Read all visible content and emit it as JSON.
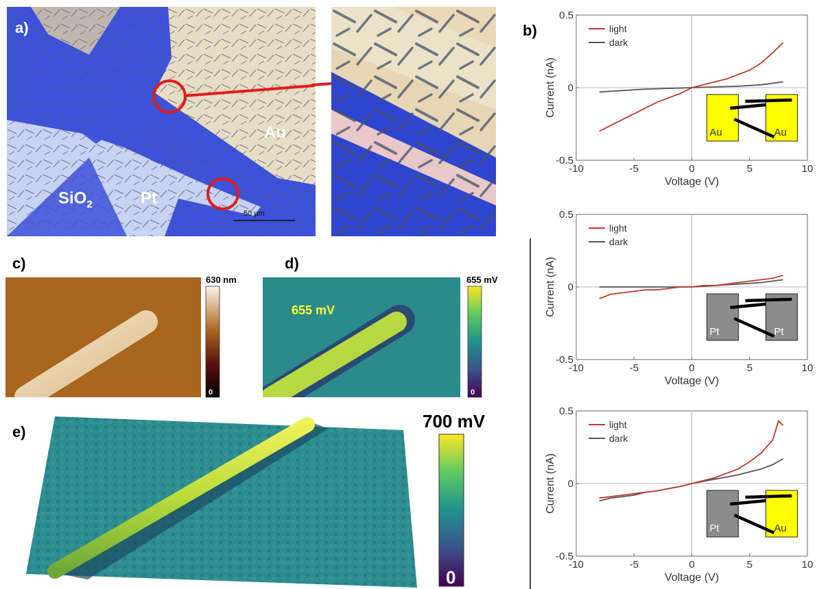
{
  "panels": {
    "a": {
      "label": "a)",
      "sio2_main": "SiO",
      "sio2_sub": "2",
      "pt": "Pt",
      "au": "Au",
      "scale_bar": "50 µm"
    },
    "b": {
      "label": "b)"
    },
    "c": {
      "label": "c)",
      "colorbar_max": "630 nm",
      "colorbar_min": "0"
    },
    "d": {
      "label": "d)",
      "colorbar_max": "655 mV",
      "colorbar_min": "0",
      "annotation": "655 mV"
    },
    "e": {
      "label": "e)",
      "colorbar_max": "700 mV",
      "colorbar_min": "0"
    }
  },
  "colors": {
    "light": "#c0392b",
    "dark": "#555555",
    "au_pad": "#ffff00",
    "pt_pad": "#8c8c8c",
    "microscope_blue": "#3a4fd6"
  },
  "chart_data": [
    {
      "type": "line",
      "contacts": [
        "Au",
        "Au"
      ],
      "xlabel": "Voltage (V)",
      "ylabel": "Current (nA)",
      "xlim": [
        -10,
        10
      ],
      "ylim": [
        -0.5,
        0.5
      ],
      "xticks": [
        "-10",
        "-5",
        "0",
        "5",
        "10"
      ],
      "yticks": [
        "0.5",
        "0",
        "-0.5"
      ],
      "legend_position": "top-left",
      "series": [
        {
          "name": "light",
          "color": "#c0392b",
          "x": [
            -8,
            -7,
            -6,
            -5,
            -4,
            -3,
            -2,
            -1,
            0,
            1,
            2,
            3,
            4,
            5,
            6,
            7,
            7.9
          ],
          "y": [
            -0.3,
            -0.26,
            -0.22,
            -0.18,
            -0.14,
            -0.1,
            -0.07,
            -0.04,
            0,
            0.02,
            0.04,
            0.06,
            0.09,
            0.12,
            0.17,
            0.24,
            0.31
          ]
        },
        {
          "name": "dark",
          "color": "#555555",
          "x": [
            -8,
            -6,
            -4,
            -2,
            0,
            2,
            4,
            6,
            7.9
          ],
          "y": [
            -0.03,
            -0.02,
            -0.01,
            -0.005,
            0,
            0.005,
            0.01,
            0.02,
            0.04
          ]
        }
      ]
    },
    {
      "type": "line",
      "contacts": [
        "Pt",
        "Pt"
      ],
      "xlabel": "Voltage (V)",
      "ylabel": "Current (nA)",
      "xlim": [
        -10,
        10
      ],
      "ylim": [
        -0.5,
        0.5
      ],
      "xticks": [
        "-10",
        "-5",
        "0",
        "5",
        "10"
      ],
      "yticks": [
        "0.5",
        "0",
        "-0.5"
      ],
      "legend_position": "top-left",
      "series": [
        {
          "name": "light",
          "color": "#c0392b",
          "x": [
            -8,
            -7,
            -6,
            -5,
            -4,
            -3,
            -2,
            -1,
            0,
            1,
            2,
            3,
            4,
            5,
            6,
            7,
            7.9
          ],
          "y": [
            -0.08,
            -0.05,
            -0.04,
            -0.03,
            -0.02,
            -0.02,
            -0.01,
            0,
            0,
            0.01,
            0.01,
            0.02,
            0.03,
            0.04,
            0.05,
            0.06,
            0.08
          ]
        },
        {
          "name": "dark",
          "color": "#555555",
          "x": [
            -8,
            -6,
            -4,
            -2,
            0,
            2,
            4,
            6,
            7.9
          ],
          "y": [
            0,
            0,
            0,
            0,
            0,
            0.01,
            0.02,
            0.03,
            0.05
          ]
        }
      ]
    },
    {
      "type": "line",
      "contacts": [
        "Pt",
        "Au"
      ],
      "xlabel": "Voltage (V)",
      "ylabel": "Current (nA)",
      "xlim": [
        -10,
        10
      ],
      "ylim": [
        -0.5,
        0.5
      ],
      "xticks": [
        "-10",
        "-5",
        "0",
        "5",
        "10"
      ],
      "yticks": [
        "0.5",
        "0",
        "-0.5"
      ],
      "legend_position": "top-left",
      "series": [
        {
          "name": "light",
          "color": "#c0392b",
          "x": [
            -8,
            -7,
            -6,
            -5,
            -4,
            -3,
            -2,
            -1,
            0,
            1,
            2,
            3,
            4,
            5,
            6,
            7,
            7.5,
            7.9
          ],
          "y": [
            -0.1,
            -0.09,
            -0.08,
            -0.07,
            -0.06,
            -0.05,
            -0.035,
            -0.02,
            0,
            0.02,
            0.04,
            0.07,
            0.1,
            0.15,
            0.21,
            0.3,
            0.43,
            0.4
          ]
        },
        {
          "name": "dark",
          "color": "#555555",
          "x": [
            -8,
            -7,
            -6,
            -5,
            -4,
            -3,
            -2,
            -1,
            0,
            1,
            2,
            3,
            4,
            5,
            6,
            7,
            7.9
          ],
          "y": [
            -0.12,
            -0.1,
            -0.09,
            -0.08,
            -0.06,
            -0.05,
            -0.035,
            -0.02,
            0,
            0.015,
            0.03,
            0.045,
            0.06,
            0.08,
            0.1,
            0.13,
            0.17
          ]
        }
      ]
    }
  ]
}
